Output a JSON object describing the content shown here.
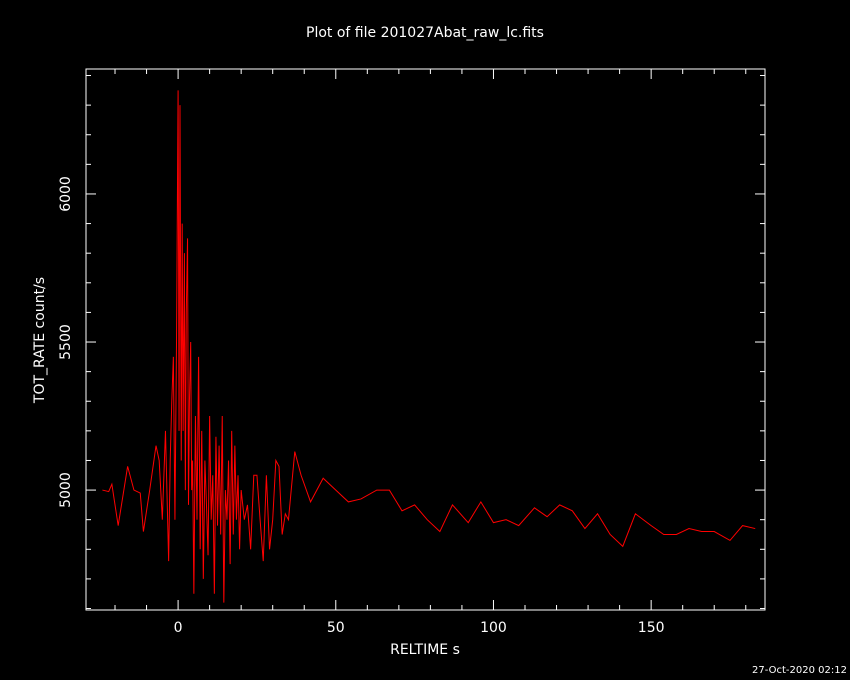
{
  "chart_data": {
    "type": "line",
    "title": "Plot of file 201027Abat_raw_lc.fits",
    "x_label": "RELTIME  s",
    "y_label": "TOT_RATE  count/s",
    "footer": "27-Oct-2020 02:12",
    "xlim": [
      -29.2,
      186.1
    ],
    "ylim": [
      4595,
      6422
    ],
    "xticks": [
      0,
      50,
      100,
      150
    ],
    "yticks": [
      5000,
      5500,
      6000
    ],
    "xticks_minor": [
      -20,
      -10,
      10,
      20,
      30,
      40,
      60,
      70,
      80,
      90,
      110,
      120,
      130,
      140,
      160,
      170,
      180
    ],
    "yticks_minor": [
      4600,
      4700,
      4800,
      4900,
      5100,
      5200,
      5300,
      5400,
      5600,
      5700,
      5800,
      5900,
      6100,
      6200,
      6300,
      6400
    ],
    "series": [
      {
        "color": "#ff0000",
        "x": [
          -24,
          -22,
          -21,
          -19,
          -16,
          -14,
          -12,
          -11,
          -9,
          -7,
          -6,
          -5,
          -4,
          -3,
          -2.5,
          -2,
          -1.5,
          -1,
          -0.5,
          0,
          0.3,
          0.6,
          1,
          1.3,
          1.6,
          2,
          2.3,
          2.6,
          3,
          3.3,
          3.6,
          4,
          4.3,
          4.6,
          5,
          5.5,
          6,
          6.5,
          7,
          7.5,
          8,
          8.5,
          9,
          9.5,
          10,
          10.5,
          11,
          11.5,
          12,
          12.5,
          13,
          13.5,
          14,
          14.5,
          15,
          15.5,
          16,
          16.5,
          17,
          17.5,
          18,
          18.5,
          19,
          19.5,
          20,
          21,
          22,
          23,
          24,
          25,
          26,
          27,
          28,
          29,
          30,
          31,
          32,
          33,
          34,
          35,
          37,
          39,
          42,
          46,
          49,
          54,
          58,
          63,
          67,
          71,
          75,
          79,
          83,
          87,
          92,
          96,
          100,
          104,
          108,
          113,
          117,
          121,
          125,
          129,
          133,
          137,
          141,
          145,
          150,
          154,
          158,
          162,
          166,
          170,
          175,
          179,
          183
        ],
        "values": [
          5000,
          4995,
          5020,
          4880,
          5080,
          5000,
          4990,
          4860,
          5000,
          5150,
          5100,
          4900,
          5200,
          4760,
          5100,
          5300,
          5450,
          4900,
          5500,
          6350,
          5200,
          6300,
          5100,
          5900,
          5200,
          5800,
          5000,
          5600,
          5850,
          4950,
          5300,
          5500,
          5000,
          5100,
          4650,
          5250,
          4900,
          5450,
          4800,
          5200,
          4700,
          5100,
          4950,
          4780,
          5250,
          4900,
          5050,
          4650,
          5180,
          4880,
          5150,
          4850,
          5250,
          4620,
          5000,
          4900,
          5100,
          4750,
          5200,
          4850,
          5150,
          4900,
          5050,
          4800,
          5000,
          4900,
          4950,
          4800,
          5050,
          5050,
          4900,
          4760,
          5050,
          4800,
          4900,
          5100,
          5080,
          4850,
          4920,
          4900,
          5130,
          5050,
          4960,
          5040,
          5010,
          4960,
          4970,
          5000,
          5000,
          4930,
          4950,
          4900,
          4860,
          4950,
          4890,
          4960,
          4890,
          4900,
          4880,
          4940,
          4910,
          4950,
          4930,
          4870,
          4920,
          4850,
          4810,
          4920,
          4880,
          4850,
          4850,
          4870,
          4860,
          4860,
          4830,
          4880,
          4870
        ]
      }
    ]
  }
}
